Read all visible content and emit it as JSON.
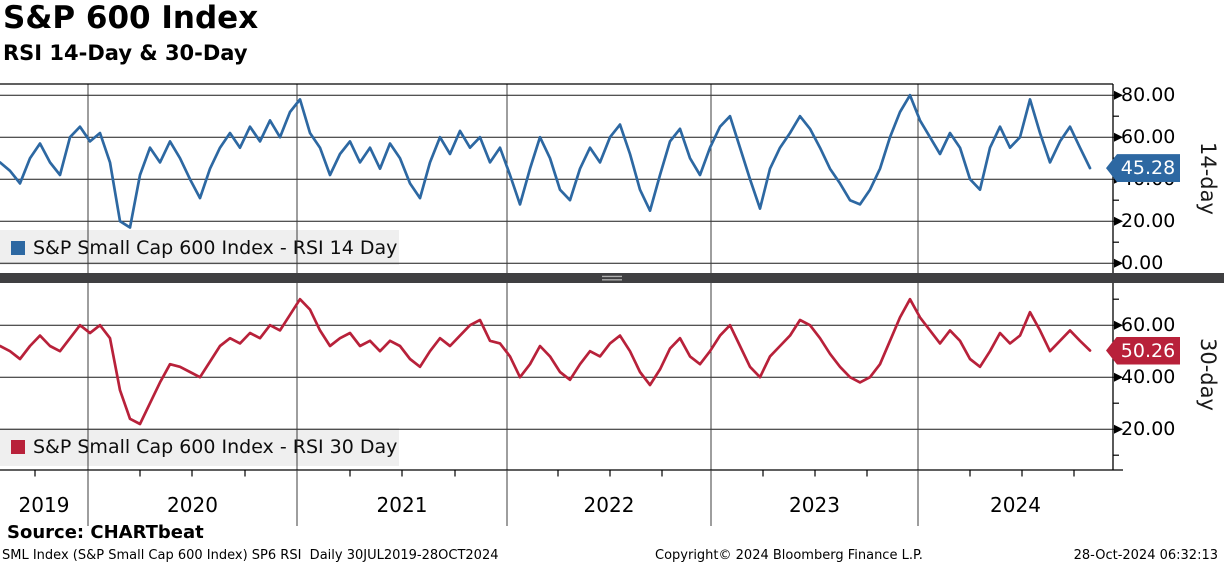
{
  "title": "S&P 600 Index",
  "subtitle": "RSI 14-Day & 30-Day",
  "panels": {
    "top": {
      "legend_label": "S&P Small Cap 600 Index - RSI 14 Day",
      "axis_rotated_label": "14-day",
      "last_value_label": "45.28",
      "color": "#2d68a2",
      "ticks": [
        {
          "label": "80.00",
          "v": 80
        },
        {
          "label": "60.00",
          "v": 60
        },
        {
          "label": "40.00",
          "v": 40
        },
        {
          "label": "20.00",
          "v": 20
        },
        {
          "label": "0.00",
          "v": 0
        }
      ]
    },
    "bottom": {
      "legend_label": "S&P Small Cap 600 Index - RSI 30 Day",
      "axis_rotated_label": "30-day",
      "last_value_label": "50.26",
      "color": "#b8213a",
      "ticks": [
        {
          "label": "60.00",
          "v": 60
        },
        {
          "label": "40.00",
          "v": 40
        },
        {
          "label": "20.00",
          "v": 20
        }
      ]
    }
  },
  "x_axis": {
    "year_labels": [
      "2019",
      "2020",
      "2021",
      "2022",
      "2023",
      "2024"
    ]
  },
  "footer": {
    "source": "Source: CHARTbeat",
    "description": "SML Index (S&P Small Cap 600 Index) SP6 RSI  Daily 30JUL2019-28OCT2024",
    "copyright": "Copyright© 2024 Bloomberg Finance L.P.",
    "timestamp": "28-Oct-2024 06:32:13"
  },
  "chart_data": [
    {
      "type": "line",
      "name": "S&P Small Cap 600 Index - RSI 14 Day",
      "panel": "top",
      "color": "#2d68a2",
      "x_range": [
        "30JUL2019",
        "28OCT2024"
      ],
      "sampling": "110 evenly spaced samples approximating the daily series",
      "ylim": [
        0,
        85
      ],
      "yticks": [
        0,
        20,
        40,
        60,
        80
      ],
      "last_value": 45.28,
      "values": [
        48,
        44,
        38,
        50,
        57,
        48,
        42,
        60,
        65,
        58,
        62,
        48,
        20,
        17,
        42,
        55,
        48,
        58,
        50,
        40,
        31,
        45,
        55,
        62,
        55,
        65,
        58,
        68,
        60,
        72,
        78,
        62,
        55,
        42,
        52,
        58,
        48,
        55,
        45,
        57,
        50,
        38,
        31,
        48,
        60,
        52,
        63,
        55,
        60,
        48,
        55,
        42,
        28,
        45,
        60,
        50,
        35,
        30,
        45,
        55,
        48,
        60,
        66,
        52,
        35,
        25,
        42,
        58,
        64,
        50,
        42,
        55,
        65,
        70,
        55,
        40,
        26,
        45,
        55,
        62,
        70,
        64,
        55,
        45,
        38,
        30,
        28,
        35,
        45,
        60,
        72,
        80,
        68,
        60,
        52,
        62,
        55,
        40,
        35,
        55,
        65,
        55,
        60,
        78,
        62,
        48,
        58,
        65,
        55,
        45.28
      ]
    },
    {
      "type": "line",
      "name": "S&P Small Cap 600 Index - RSI 30 Day",
      "panel": "bottom",
      "color": "#b8213a",
      "x_range": [
        "30JUL2019",
        "28OCT2024"
      ],
      "sampling": "110 evenly spaced samples approximating the daily series",
      "ylim": [
        5,
        76
      ],
      "yticks": [
        20,
        40,
        60
      ],
      "last_value": 50.26,
      "values": [
        52,
        50,
        47,
        52,
        56,
        52,
        50,
        55,
        60,
        57,
        60,
        55,
        35,
        24,
        22,
        30,
        38,
        45,
        44,
        42,
        40,
        46,
        52,
        55,
        53,
        57,
        55,
        60,
        58,
        64,
        70,
        66,
        58,
        52,
        55,
        57,
        52,
        54,
        50,
        54,
        52,
        47,
        44,
        50,
        55,
        52,
        56,
        60,
        62,
        54,
        53,
        48,
        40,
        45,
        52,
        48,
        42,
        39,
        45,
        50,
        48,
        53,
        56,
        50,
        42,
        37,
        43,
        51,
        55,
        48,
        45,
        50,
        56,
        60,
        52,
        44,
        40,
        48,
        52,
        56,
        62,
        60,
        55,
        49,
        44,
        40,
        38,
        40,
        45,
        54,
        63,
        70,
        63,
        58,
        53,
        58,
        54,
        47,
        44,
        50,
        57,
        53,
        56,
        65,
        58,
        50,
        54,
        58,
        54,
        50.26
      ]
    }
  ]
}
